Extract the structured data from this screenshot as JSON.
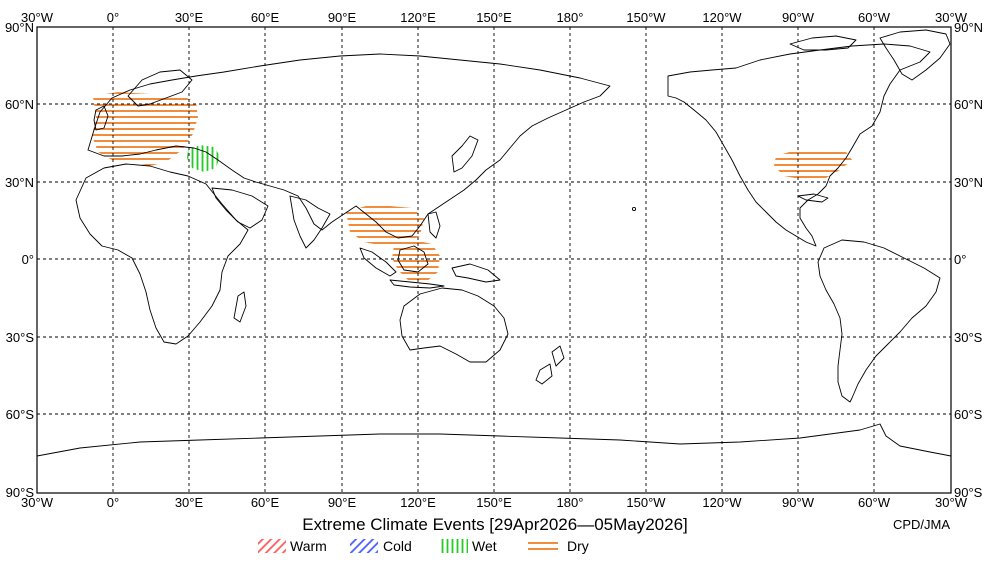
{
  "map": {
    "title": "Extreme Climate Events [29Apr2026—05May2026]",
    "credit": "CPD/JMA",
    "lon_labels": [
      "30°W",
      "0°",
      "30°E",
      "60°E",
      "90°E",
      "120°E",
      "150°E",
      "180°",
      "150°W",
      "120°W",
      "90°W",
      "60°W",
      "30°W"
    ],
    "lat_labels": [
      "90°N",
      "60°N",
      "30°N",
      "0°",
      "30°S",
      "60°S",
      "90°S"
    ],
    "colors": {
      "warm": "#ff5a5a",
      "cold": "#4a5dff",
      "wet": "#22cc22",
      "dry": "#f08c3c"
    },
    "legend": [
      {
        "key": "warm",
        "label": "Warm",
        "pattern": "diagonal-hatch"
      },
      {
        "key": "cold",
        "label": "Cold",
        "pattern": "diagonal-hatch"
      },
      {
        "key": "wet",
        "label": "Wet",
        "pattern": "vertical-hatch"
      },
      {
        "key": "dry",
        "label": "Dry",
        "pattern": "horizontal-hatch"
      }
    ],
    "events": [
      {
        "id": "europe",
        "type": "dry"
      },
      {
        "id": "black-sea",
        "type": "wet"
      },
      {
        "id": "indochina",
        "type": "dry"
      },
      {
        "id": "borneo-sulawesi",
        "type": "dry"
      },
      {
        "id": "eastern-us",
        "type": "dry"
      }
    ]
  }
}
